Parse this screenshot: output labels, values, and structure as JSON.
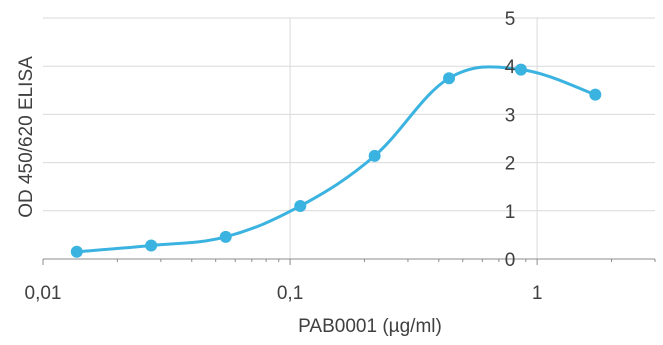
{
  "chart_data": {
    "type": "scatter",
    "title": "",
    "xlabel": "PAB0001 (µg/ml)",
    "ylabel": "OD 450/620 ELISA",
    "x_scale": "log",
    "xlim": [
      0.01,
      3
    ],
    "ylim": [
      0,
      5
    ],
    "grid": true,
    "legend": "none",
    "x_ticks": [
      {
        "value": 0.01,
        "label": "0,01"
      },
      {
        "value": 0.1,
        "label": "0,1"
      },
      {
        "value": 1,
        "label": "1"
      }
    ],
    "y_ticks": [
      {
        "value": 0,
        "label": "0"
      },
      {
        "value": 1,
        "label": "1"
      },
      {
        "value": 2,
        "label": "2"
      },
      {
        "value": 3,
        "label": "3"
      },
      {
        "value": 4,
        "label": "4"
      },
      {
        "value": 5,
        "label": "5"
      }
    ],
    "series": [
      {
        "color": "#3BB3E0",
        "smooth": true,
        "x": [
          0.0137,
          0.0274,
          0.0549,
          0.11,
          0.22,
          0.44,
          0.86,
          1.72
        ],
        "y": [
          0.15,
          0.28,
          0.46,
          1.1,
          2.14,
          3.75,
          3.93,
          3.41
        ]
      }
    ]
  }
}
